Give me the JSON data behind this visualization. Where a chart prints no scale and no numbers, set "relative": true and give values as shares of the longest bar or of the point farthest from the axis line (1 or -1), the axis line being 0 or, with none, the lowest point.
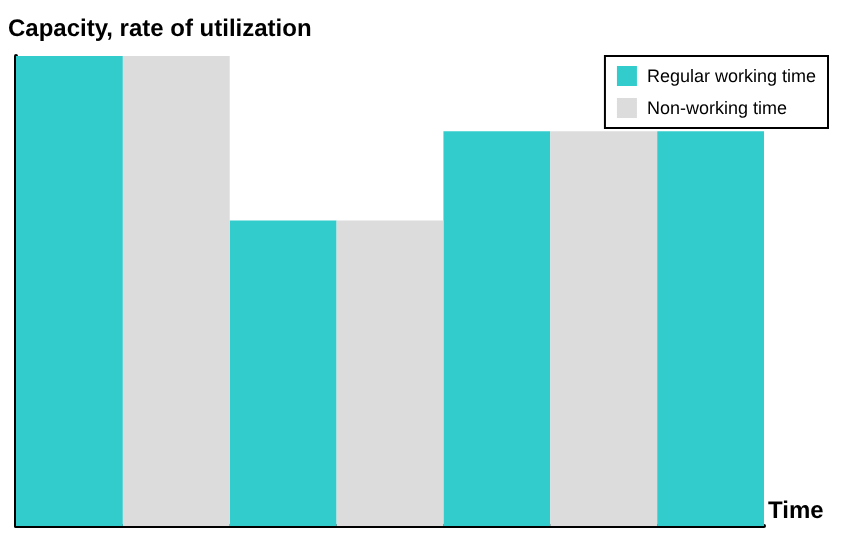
{
  "chart_data": {
    "type": "bar",
    "ylabel": "Capacity, rate of utilization",
    "xlabel": "Time",
    "relative": true,
    "categories": [
      null,
      null,
      null,
      null,
      null,
      null,
      null
    ],
    "series": [
      {
        "name": "Regular working time",
        "color": "#33cccc",
        "values": [
          1,
          null,
          0.65,
          null,
          0.84,
          null,
          0.84
        ]
      },
      {
        "name": "Non-working time",
        "color": "#dcdcdc",
        "values": [
          null,
          1,
          null,
          0.65,
          null,
          0.84,
          null
        ]
      }
    ],
    "legend": "top right",
    "grid": false,
    "stacked": true
  }
}
